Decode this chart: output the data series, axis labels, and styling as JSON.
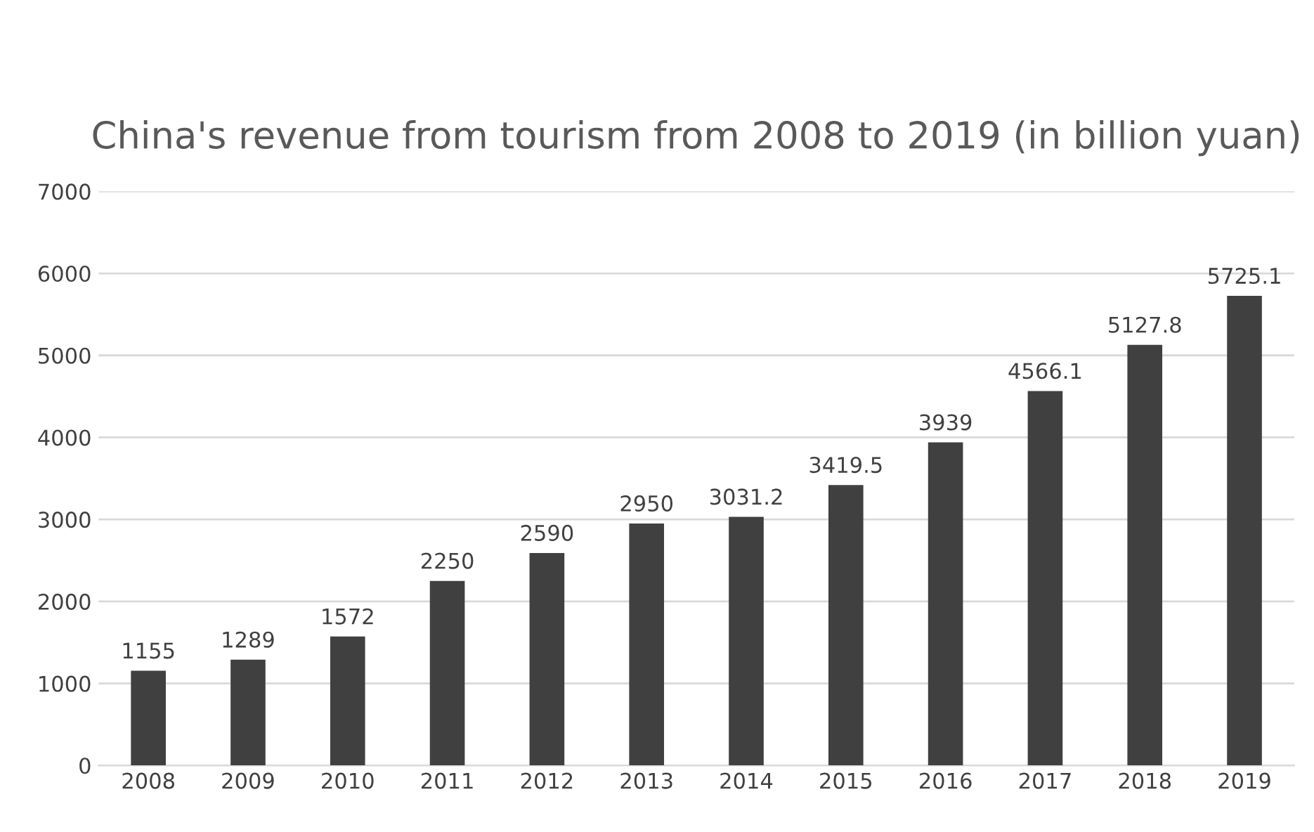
{
  "chart_data": {
    "type": "bar",
    "title": "China's revenue from tourism from 2008 to 2019 (in billion yuan)",
    "categories": [
      "2008",
      "2009",
      "2010",
      "2011",
      "2012",
      "2013",
      "2014",
      "2015",
      "2016",
      "2017",
      "2018",
      "2019"
    ],
    "values": [
      1155,
      1289,
      1572,
      2250,
      2590,
      2950,
      3031.2,
      3419.5,
      3939,
      4566.1,
      5127.8,
      5725.1
    ],
    "color": "#404040",
    "ylim": [
      0,
      7000
    ],
    "yticks": [
      0,
      1000,
      2000,
      3000,
      4000,
      5000,
      6000,
      7000
    ],
    "grid": "y",
    "data_labels": true,
    "legend": false
  }
}
